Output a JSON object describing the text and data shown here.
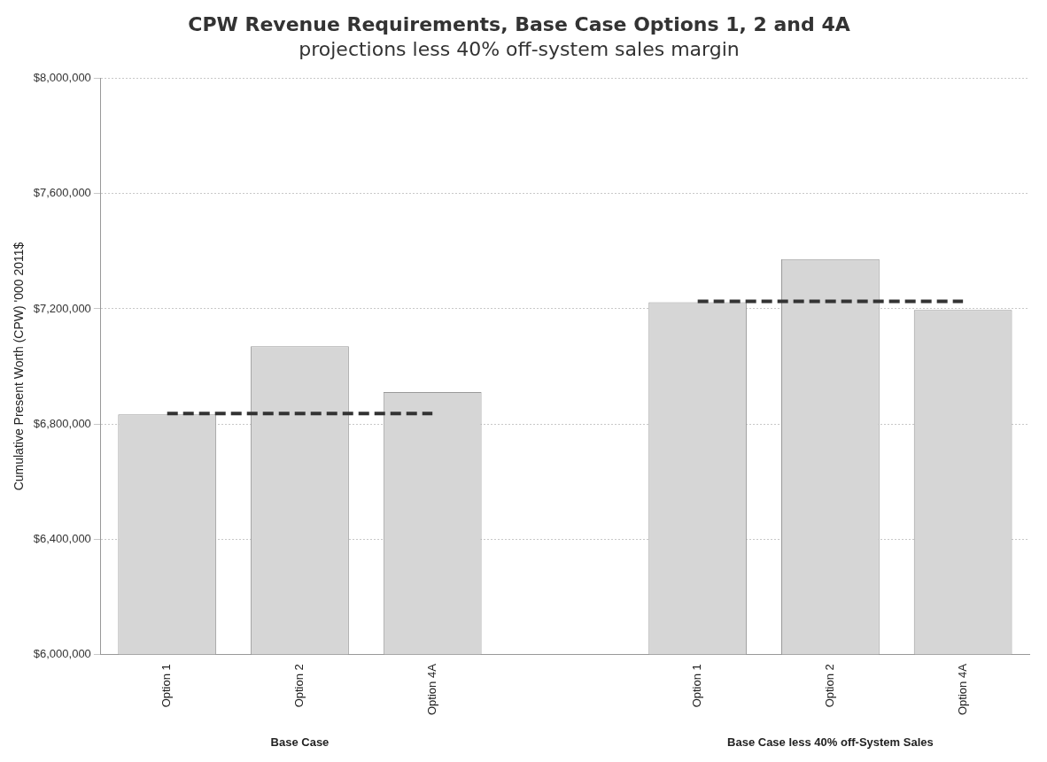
{
  "chart_data": {
    "type": "bar",
    "title": "CPW Revenue Requirements, Base Case Options 1, 2 and 4A",
    "subtitle": "projections less 40% off-system sales margin",
    "ylabel": "Cumulative Present Worth (CPW) '000 2011$",
    "categories": [
      "Option 1",
      "Option 2",
      "Option 4A",
      null,
      "Option 1",
      "Option 2",
      "Option 4A"
    ],
    "series": [
      {
        "color": "#d6d6d6",
        "values": [
          6833000,
          7070000,
          6911000,
          null,
          7223000,
          7373000,
          7196000
        ]
      },
      {
        "type": "line",
        "color": "#333333",
        "line_style": "dashed",
        "marker": "none",
        "values": [
          6836000,
          6836000,
          6836000,
          null,
          null,
          null,
          null
        ]
      },
      {
        "type": "line",
        "color": "#333333",
        "line_style": "dashed",
        "marker": "none",
        "values": [
          null,
          null,
          null,
          null,
          7226000,
          7226000,
          7226000
        ]
      }
    ],
    "ylim": [
      6000000,
      8000000
    ],
    "yticks": [
      {
        "value": 6000000,
        "label": "$6,000,000"
      },
      {
        "value": 6400000,
        "label": "$6,400,000"
      },
      {
        "value": 6800000,
        "label": "$6,800,000"
      },
      {
        "value": 7200000,
        "label": "$7,200,000"
      },
      {
        "value": 7600000,
        "label": "$7,600,000"
      },
      {
        "value": 8000000,
        "label": "$8,000,000"
      }
    ],
    "grid": "y",
    "legend": false,
    "annotations": [
      "Base Case",
      "Base Case less 40% off-System Sales"
    ]
  }
}
